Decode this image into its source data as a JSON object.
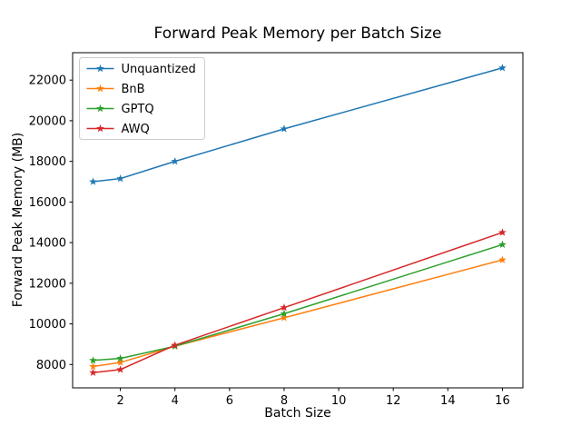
{
  "title": "Forward Peak Memory per Batch Size",
  "xlabel": "Batch Size",
  "ylabel": "Forward Peak Memory (MB)",
  "chart_data": {
    "type": "line",
    "x": [
      1,
      2,
      4,
      8,
      16
    ],
    "series": [
      {
        "name": "Unquantized",
        "color": "#1f77b4",
        "values": [
          17000,
          17150,
          18000,
          19600,
          22600
        ]
      },
      {
        "name": "BnB",
        "color": "#ff7f0e",
        "values": [
          7900,
          8100,
          8900,
          10300,
          13150
        ]
      },
      {
        "name": "GPTQ",
        "color": "#2ca02c",
        "values": [
          8200,
          8300,
          8900,
          10500,
          13900
        ]
      },
      {
        "name": "AWQ",
        "color": "#d62728",
        "values": [
          7600,
          7750,
          8950,
          10800,
          14500
        ]
      }
    ],
    "marker": "star",
    "xlim": [
      0.25,
      16.75
    ],
    "ylim": [
      6850,
      23350
    ],
    "x_ticks": [
      2,
      4,
      6,
      8,
      10,
      12,
      14,
      16
    ],
    "y_ticks": [
      8000,
      10000,
      12000,
      14000,
      16000,
      18000,
      20000,
      22000
    ],
    "grid": false,
    "legend_position": "upper left",
    "legend_border_color": "#cccccc",
    "axis_color": "#000000"
  }
}
